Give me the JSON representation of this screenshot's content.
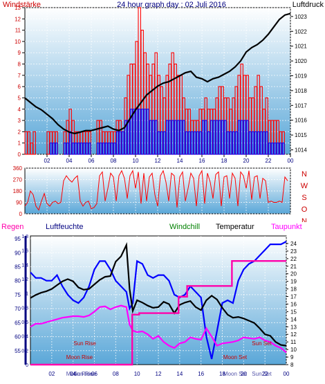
{
  "title": "24 hour graph day : 02 Juli 2016",
  "colors": {
    "wind_speed": "#ff0000",
    "wind_gust": "#ff0000",
    "wind_avg": "#0000ff",
    "pressure": "#000000",
    "direction": "#ff0000",
    "humidity": "#0000ff",
    "temperature": "#000000",
    "dewpoint": "#ff00ff",
    "rain": "#ff00aa",
    "windchill": "#008000",
    "axis_blue": "#000080",
    "axis_red": "#cc0000"
  },
  "x_tick_labels": [
    "02",
    "04",
    "06",
    "08",
    "10",
    "12",
    "14",
    "16",
    "18",
    "20",
    "22",
    "00"
  ],
  "chart_data": [
    {
      "type": "line",
      "id": "wind-pressure",
      "left_label": "Windstärke",
      "right_label": "Luftdruck",
      "x_range_hours": [
        0,
        24
      ],
      "left_ylim": [
        0,
        13
      ],
      "left_ticks": [
        "0",
        "1",
        "2",
        "3",
        "4",
        "5",
        "6",
        "7",
        "8",
        "9",
        "10",
        "11",
        "12",
        "13"
      ],
      "right_ylim": [
        1013.7,
        1023.6
      ],
      "right_ticks": [
        "1014",
        "1015",
        "1016",
        "1017",
        "1018",
        "1019",
        "1020",
        "1021",
        "1022",
        "1023"
      ],
      "grid": true,
      "series": [
        {
          "key": "pressure",
          "x": [
            0,
            0.5,
            1,
            1.5,
            2,
            2.5,
            3,
            3.5,
            4,
            4.5,
            5,
            5.5,
            6,
            6.5,
            7,
            7.5,
            8,
            8.5,
            9,
            9.5,
            10,
            10.5,
            11,
            11.5,
            12,
            12.5,
            13,
            13.5,
            14,
            14.5,
            15,
            15.5,
            16,
            16.5,
            17,
            17.5,
            18,
            18.5,
            19,
            19.5,
            20,
            20.5,
            21,
            21.5,
            22,
            22.5,
            23,
            23.5,
            24
          ],
          "y": [
            1017.5,
            1017.2,
            1016.9,
            1016.7,
            1016.4,
            1016.1,
            1015.7,
            1015.4,
            1015.2,
            1015.1,
            1015.2,
            1015.3,
            1015.3,
            1015.4,
            1015.5,
            1015.6,
            1015.4,
            1015.3,
            1015.5,
            1016.1,
            1016.7,
            1017.2,
            1017.7,
            1018.0,
            1018.3,
            1018.5,
            1018.6,
            1018.8,
            1019.0,
            1019.2,
            1019.3,
            1018.9,
            1018.8,
            1018.6,
            1018.8,
            1018.9,
            1019.1,
            1019.3,
            1019.6,
            1020.0,
            1020.6,
            1020.9,
            1021.1,
            1021.4,
            1021.8,
            1022.3,
            1022.8,
            1023.1,
            1023.2
          ]
        },
        {
          "key": "wind_gust",
          "x_start_hours": 0,
          "step_hours": 0.25,
          "values": [
            2,
            2,
            1,
            2,
            0,
            0,
            0,
            0,
            2,
            2,
            2,
            2,
            0,
            0,
            2,
            3,
            4,
            3,
            2,
            2,
            2,
            2,
            2,
            2,
            0,
            0,
            3,
            3,
            2,
            2,
            2,
            2,
            2,
            3,
            3,
            2,
            5,
            7,
            8,
            8,
            10,
            13,
            11,
            9,
            8,
            7,
            8,
            9,
            7,
            6,
            5,
            7,
            8,
            9,
            8,
            7,
            7,
            5,
            4,
            4,
            3,
            3,
            3,
            4,
            4,
            5,
            4,
            4,
            4,
            5,
            6,
            6,
            5,
            5,
            4,
            5,
            6,
            7,
            8,
            7,
            7,
            5,
            5,
            6,
            7,
            6,
            4,
            5,
            3,
            3,
            3,
            3,
            2,
            2,
            0,
            0
          ]
        },
        {
          "key": "wind_avg",
          "x_start_hours": 0,
          "step_hours": 0.25,
          "values": [
            0,
            0,
            0,
            0,
            0,
            0,
            0,
            0,
            0,
            1,
            1,
            1,
            0,
            0,
            1,
            1,
            2,
            1,
            1,
            1,
            1,
            1,
            1,
            1,
            0,
            0,
            1,
            1,
            1,
            1,
            1,
            1,
            1,
            2,
            2,
            2,
            3,
            3,
            4,
            4,
            4,
            4,
            4,
            4,
            4,
            3,
            3,
            3,
            2,
            2,
            2,
            3,
            3,
            3,
            3,
            3,
            3,
            3,
            2,
            2,
            2,
            2,
            2,
            2,
            3,
            3,
            2,
            3,
            3,
            3,
            3,
            3,
            3,
            2,
            2,
            2,
            2,
            3,
            3,
            3,
            3,
            2,
            2,
            2,
            2,
            2,
            2,
            2,
            1,
            1,
            1,
            1,
            1,
            1,
            0,
            0
          ]
        }
      ]
    },
    {
      "type": "line",
      "id": "wind-direction",
      "ylim": [
        0,
        360
      ],
      "ticks": [
        "0",
        "90",
        "180",
        "270",
        "360"
      ],
      "compass": [
        "N",
        "W",
        "S",
        "O",
        "N"
      ],
      "series": [
        {
          "key": "direction",
          "x_start_hours": 0,
          "step_hours": 0.25,
          "values": [
            60,
            90,
            180,
            150,
            60,
            30,
            100,
            160,
            80,
            60,
            90,
            100,
            80,
            90,
            260,
            300,
            270,
            250,
            280,
            300,
            100,
            60,
            90,
            100,
            40,
            50,
            80,
            300,
            330,
            100,
            200,
            320,
            290,
            100,
            300,
            340,
            280,
            120,
            300,
            340,
            200,
            330,
            80,
            320,
            100,
            290,
            320,
            150,
            60,
            300,
            340,
            250,
            100,
            320,
            300,
            50,
            290,
            330,
            100,
            200,
            320,
            280,
            60,
            300,
            340,
            80,
            320,
            250,
            120,
            310,
            330,
            60,
            290,
            300,
            120,
            320,
            280,
            60,
            330,
            300,
            200,
            340,
            110,
            290,
            300,
            120,
            280,
            260,
            90,
            100,
            90,
            90,
            100,
            90,
            290,
            260
          ]
        }
      ]
    },
    {
      "type": "line",
      "id": "temp-humidity",
      "labels": {
        "rain": "Regen",
        "humidity": "Luftfeuchte",
        "windchill": "Windchill",
        "temperature": "Temperatur",
        "dewpoint": "Taupunkt"
      },
      "humidity_ylim": [
        50,
        96
      ],
      "humidity_ticks": [
        "55",
        "60",
        "65",
        "70",
        "75",
        "80",
        "85",
        "90",
        "95"
      ],
      "rain_ylim": [
        0,
        1.8
      ],
      "rain_ticks": [
        "0",
        "0.2",
        "0.4",
        "0.6",
        "0.8",
        "1",
        "1.2",
        "1.4",
        "1.6",
        "1.8"
      ],
      "temp_ylim": [
        8,
        25
      ],
      "temp_ticks": [
        "8",
        "9",
        "10",
        "11",
        "12",
        "13",
        "14",
        "15",
        "16",
        "17",
        "18",
        "19",
        "20",
        "21",
        "22",
        "23",
        "24"
      ],
      "annotations": [
        {
          "text": "Sun Rise",
          "hour": 5.1
        },
        {
          "text": "Moon Rise",
          "hour": 4.6
        },
        {
          "text": "Sun Set",
          "hour": 21.7
        },
        {
          "text": "Moon Set",
          "hour": 19.2
        }
      ],
      "x_tick_labels": [
        "02",
        "04",
        "06",
        "08",
        "10",
        "12",
        "14",
        "16",
        "18",
        "20",
        "22",
        "00"
      ],
      "bottom_overlap_labels": [
        "Moon Rise",
        "Moon Set",
        "Sun Set",
        "Sun Rise"
      ],
      "series": [
        {
          "key": "humidity",
          "x": [
            0,
            0.5,
            1,
            1.5,
            2,
            2.5,
            3,
            3.5,
            4,
            4.5,
            5,
            5.5,
            6,
            6.5,
            7,
            7.5,
            8,
            8.5,
            9,
            9.3,
            9.6,
            10,
            10.5,
            11,
            11.5,
            12,
            12.5,
            13,
            13.5,
            14,
            14.5,
            15,
            15.5,
            16,
            16.5,
            17,
            17.5,
            18,
            18.5,
            19,
            19.5,
            20,
            20.5,
            21,
            21.5,
            22,
            22.5,
            23,
            23.5,
            24
          ],
          "y": [
            83,
            81,
            81,
            80,
            80,
            82,
            78,
            75,
            73,
            72,
            74,
            78,
            84,
            87,
            87,
            84,
            80,
            78,
            76,
            70,
            72,
            87,
            86,
            82,
            81,
            82,
            82,
            80,
            75,
            74,
            75,
            78,
            76,
            74,
            60,
            52,
            62,
            72,
            73,
            72,
            80,
            84,
            86,
            87,
            89,
            91,
            93,
            93,
            93,
            94
          ]
        },
        {
          "key": "temperature",
          "x": [
            0,
            0.5,
            1,
            1.5,
            2,
            2.5,
            3,
            3.5,
            4,
            4.5,
            5,
            5.5,
            6,
            6.5,
            7,
            7.5,
            8,
            8.5,
            9,
            9.3,
            9.6,
            10,
            10.5,
            11,
            11.5,
            12,
            12.5,
            13,
            13.5,
            14,
            14.5,
            15,
            15.5,
            16,
            16.5,
            17,
            17.5,
            18,
            18.5,
            19,
            19.5,
            20,
            20.5,
            21,
            21.5,
            22,
            22.5,
            23,
            23.5,
            24
          ],
          "y": [
            16.8,
            17.2,
            17.5,
            17.7,
            18.0,
            18.5,
            19.0,
            19.3,
            19.0,
            18.2,
            17.9,
            18.0,
            18.6,
            19.2,
            19.6,
            19.7,
            21.6,
            22.3,
            23.8,
            18.0,
            15.1,
            16.5,
            16.2,
            15.8,
            15.5,
            15.6,
            16.3,
            16.0,
            14.8,
            15.9,
            16.2,
            16.4,
            15.6,
            15.2,
            16.5,
            17.1,
            16.6,
            15.5,
            14.6,
            14.2,
            14.3,
            14.1,
            13.8,
            13.5,
            12.8,
            12.0,
            11.8,
            11.0,
            10.6,
            10.5
          ]
        },
        {
          "key": "dewpoint",
          "x": [
            0,
            0.5,
            1,
            1.5,
            2,
            2.5,
            3,
            3.5,
            4,
            4.5,
            5,
            5.5,
            6,
            6.5,
            7,
            7.5,
            8,
            8.5,
            9,
            9.3,
            9.6,
            10,
            10.5,
            11,
            11.5,
            12,
            12.5,
            13,
            13.5,
            14,
            14.5,
            15,
            15.5,
            16,
            16.5,
            17,
            17.5,
            18,
            18.5,
            19,
            19.5,
            20,
            20.5,
            21,
            21.5,
            22,
            22.5,
            23,
            23.5,
            24
          ],
          "y": [
            13.0,
            13.4,
            13.4,
            13.6,
            13.8,
            14.0,
            14.2,
            14.3,
            14.4,
            14.4,
            14.3,
            14.5,
            15.0,
            15.6,
            15.7,
            15.3,
            15.6,
            15.8,
            15.6,
            13.3,
            12.5,
            12.3,
            12.4,
            12.0,
            11.4,
            11.8,
            11.0,
            10.5,
            10.2,
            10.8,
            11.0,
            11.6,
            11.4,
            11.3,
            12.8,
            11.7,
            10.5,
            10.8,
            10.9,
            11.0,
            11.2,
            11.6,
            11.5,
            11.4,
            11.6,
            11.2,
            11.0,
            10.5,
            10.2,
            9.6
          ]
        },
        {
          "key": "rain",
          "x": [
            0,
            9.55,
            9.55,
            10.2,
            10.2,
            13.9,
            13.9,
            14.7,
            14.7,
            18.9,
            18.9,
            24
          ],
          "y": [
            0,
            0,
            0.7,
            0.7,
            0.72,
            0.72,
            0.95,
            0.95,
            1.1,
            1.1,
            1.45,
            1.45
          ]
        }
      ]
    }
  ]
}
